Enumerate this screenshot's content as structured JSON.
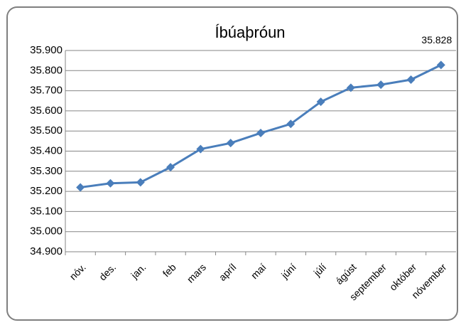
{
  "chart_data": {
    "type": "line",
    "title": "Íbúaþróun",
    "categories": [
      "nóv.",
      "des.",
      "jan.",
      "feb",
      "mars",
      "apríl",
      "maí",
      "júní",
      "júlí",
      "ágúst",
      "september",
      "október",
      "nóvember"
    ],
    "series": [
      {
        "name": "Íbúaþróun",
        "color": "#4a7ebb",
        "values": [
          35220,
          35240,
          35245,
          35320,
          35410,
          35440,
          35490,
          35535,
          35645,
          35715,
          35730,
          35755,
          35828
        ],
        "value_labels": [
          null,
          null,
          null,
          null,
          null,
          null,
          null,
          null,
          null,
          null,
          null,
          null,
          "35.828"
        ]
      }
    ],
    "ylim": [
      34900,
      35900
    ],
    "yticks": [
      {
        "value": 34900,
        "label": "34.900"
      },
      {
        "value": 35000,
        "label": "35.000"
      },
      {
        "value": 35100,
        "label": "35.100"
      },
      {
        "value": 35200,
        "label": "35.200"
      },
      {
        "value": 35300,
        "label": "35.300"
      },
      {
        "value": 35400,
        "label": "35.400"
      },
      {
        "value": 35500,
        "label": "35.500"
      },
      {
        "value": 35600,
        "label": "35.600"
      },
      {
        "value": 35700,
        "label": "35.700"
      },
      {
        "value": 35800,
        "label": "35.800"
      },
      {
        "value": 35900,
        "label": "35.900"
      }
    ],
    "grid": true
  }
}
